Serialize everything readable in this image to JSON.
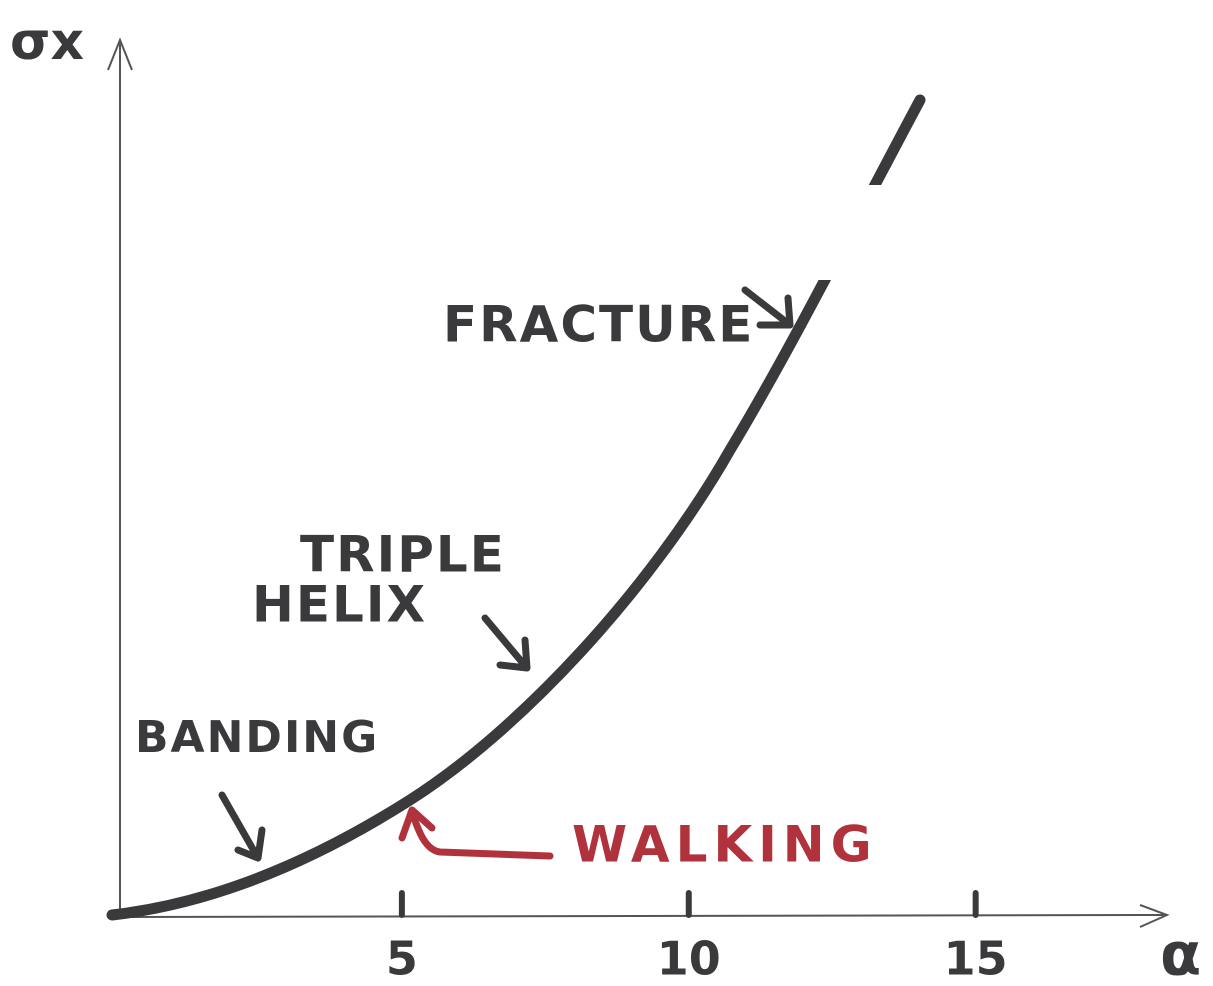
{
  "chart_data": {
    "type": "line",
    "x_label": "α",
    "y_label": "σx",
    "xlim": [
      0,
      18.3
    ],
    "xticks": [
      5,
      10,
      15
    ],
    "annotations": [
      "FRACTURE",
      "TRIPLE",
      "HELIX",
      "BANDING",
      "WALKING"
    ]
  }
}
